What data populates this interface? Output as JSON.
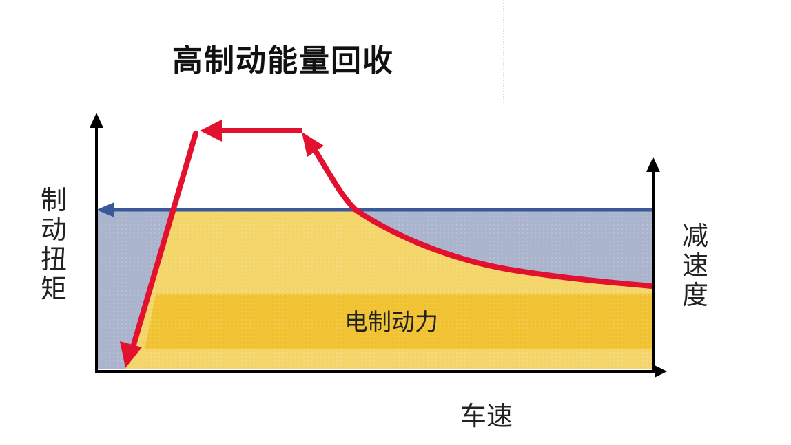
{
  "title": "高制动能量回收",
  "y_axis_left_label": "制动扭矩",
  "y_axis_right_label": "减速度",
  "x_axis_label": "车速",
  "region_label": "电制动力",
  "colors": {
    "friction_region": "#aab4cc",
    "regen_region": "#f4d56a",
    "electric_band": "#f1c232",
    "blue_arrow": "#3b5998",
    "red_path": "#e2112f",
    "axis": "#000000"
  },
  "icons": [
    "arrow-up-icon",
    "arrow-right-icon",
    "arrow-left-icon"
  ]
}
